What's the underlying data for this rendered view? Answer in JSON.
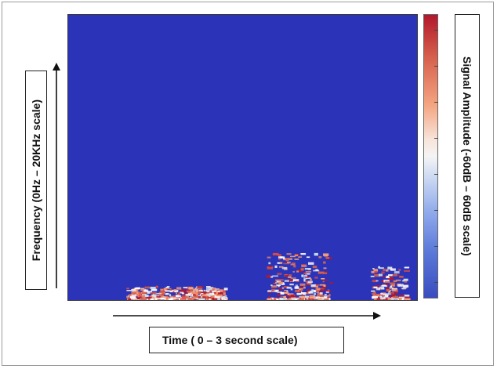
{
  "chart_data": {
    "type": "heatmap",
    "title": "",
    "xlabel": "Time ( 0 – 3 second scale)",
    "ylabel": "Frequency (0Hz – 20KHz scale)",
    "xlim": [
      0,
      3
    ],
    "ylim": [
      0,
      20000
    ],
    "colorbar": {
      "label": "Signal Amplitude (-60dB – 60dB scale)",
      "range": [
        -60,
        60
      ],
      "colormap": "blue-white-red (coolwarm)"
    },
    "background_color": "#2b33b8",
    "energy_regions": [
      {
        "t_start": 0.5,
        "t_end": 1.35,
        "f_max": 900,
        "intensity": "high"
      },
      {
        "t_start": 1.7,
        "t_end": 2.25,
        "f_max": 3200,
        "intensity": "high"
      },
      {
        "t_start": 2.6,
        "t_end": 2.9,
        "f_max": 2300,
        "intensity": "high"
      }
    ],
    "grid": false,
    "legend": "colorbar-right"
  },
  "colors": {
    "low": "#3a4cc0",
    "mid": "#f4f4f4",
    "high": "#b2182b"
  }
}
